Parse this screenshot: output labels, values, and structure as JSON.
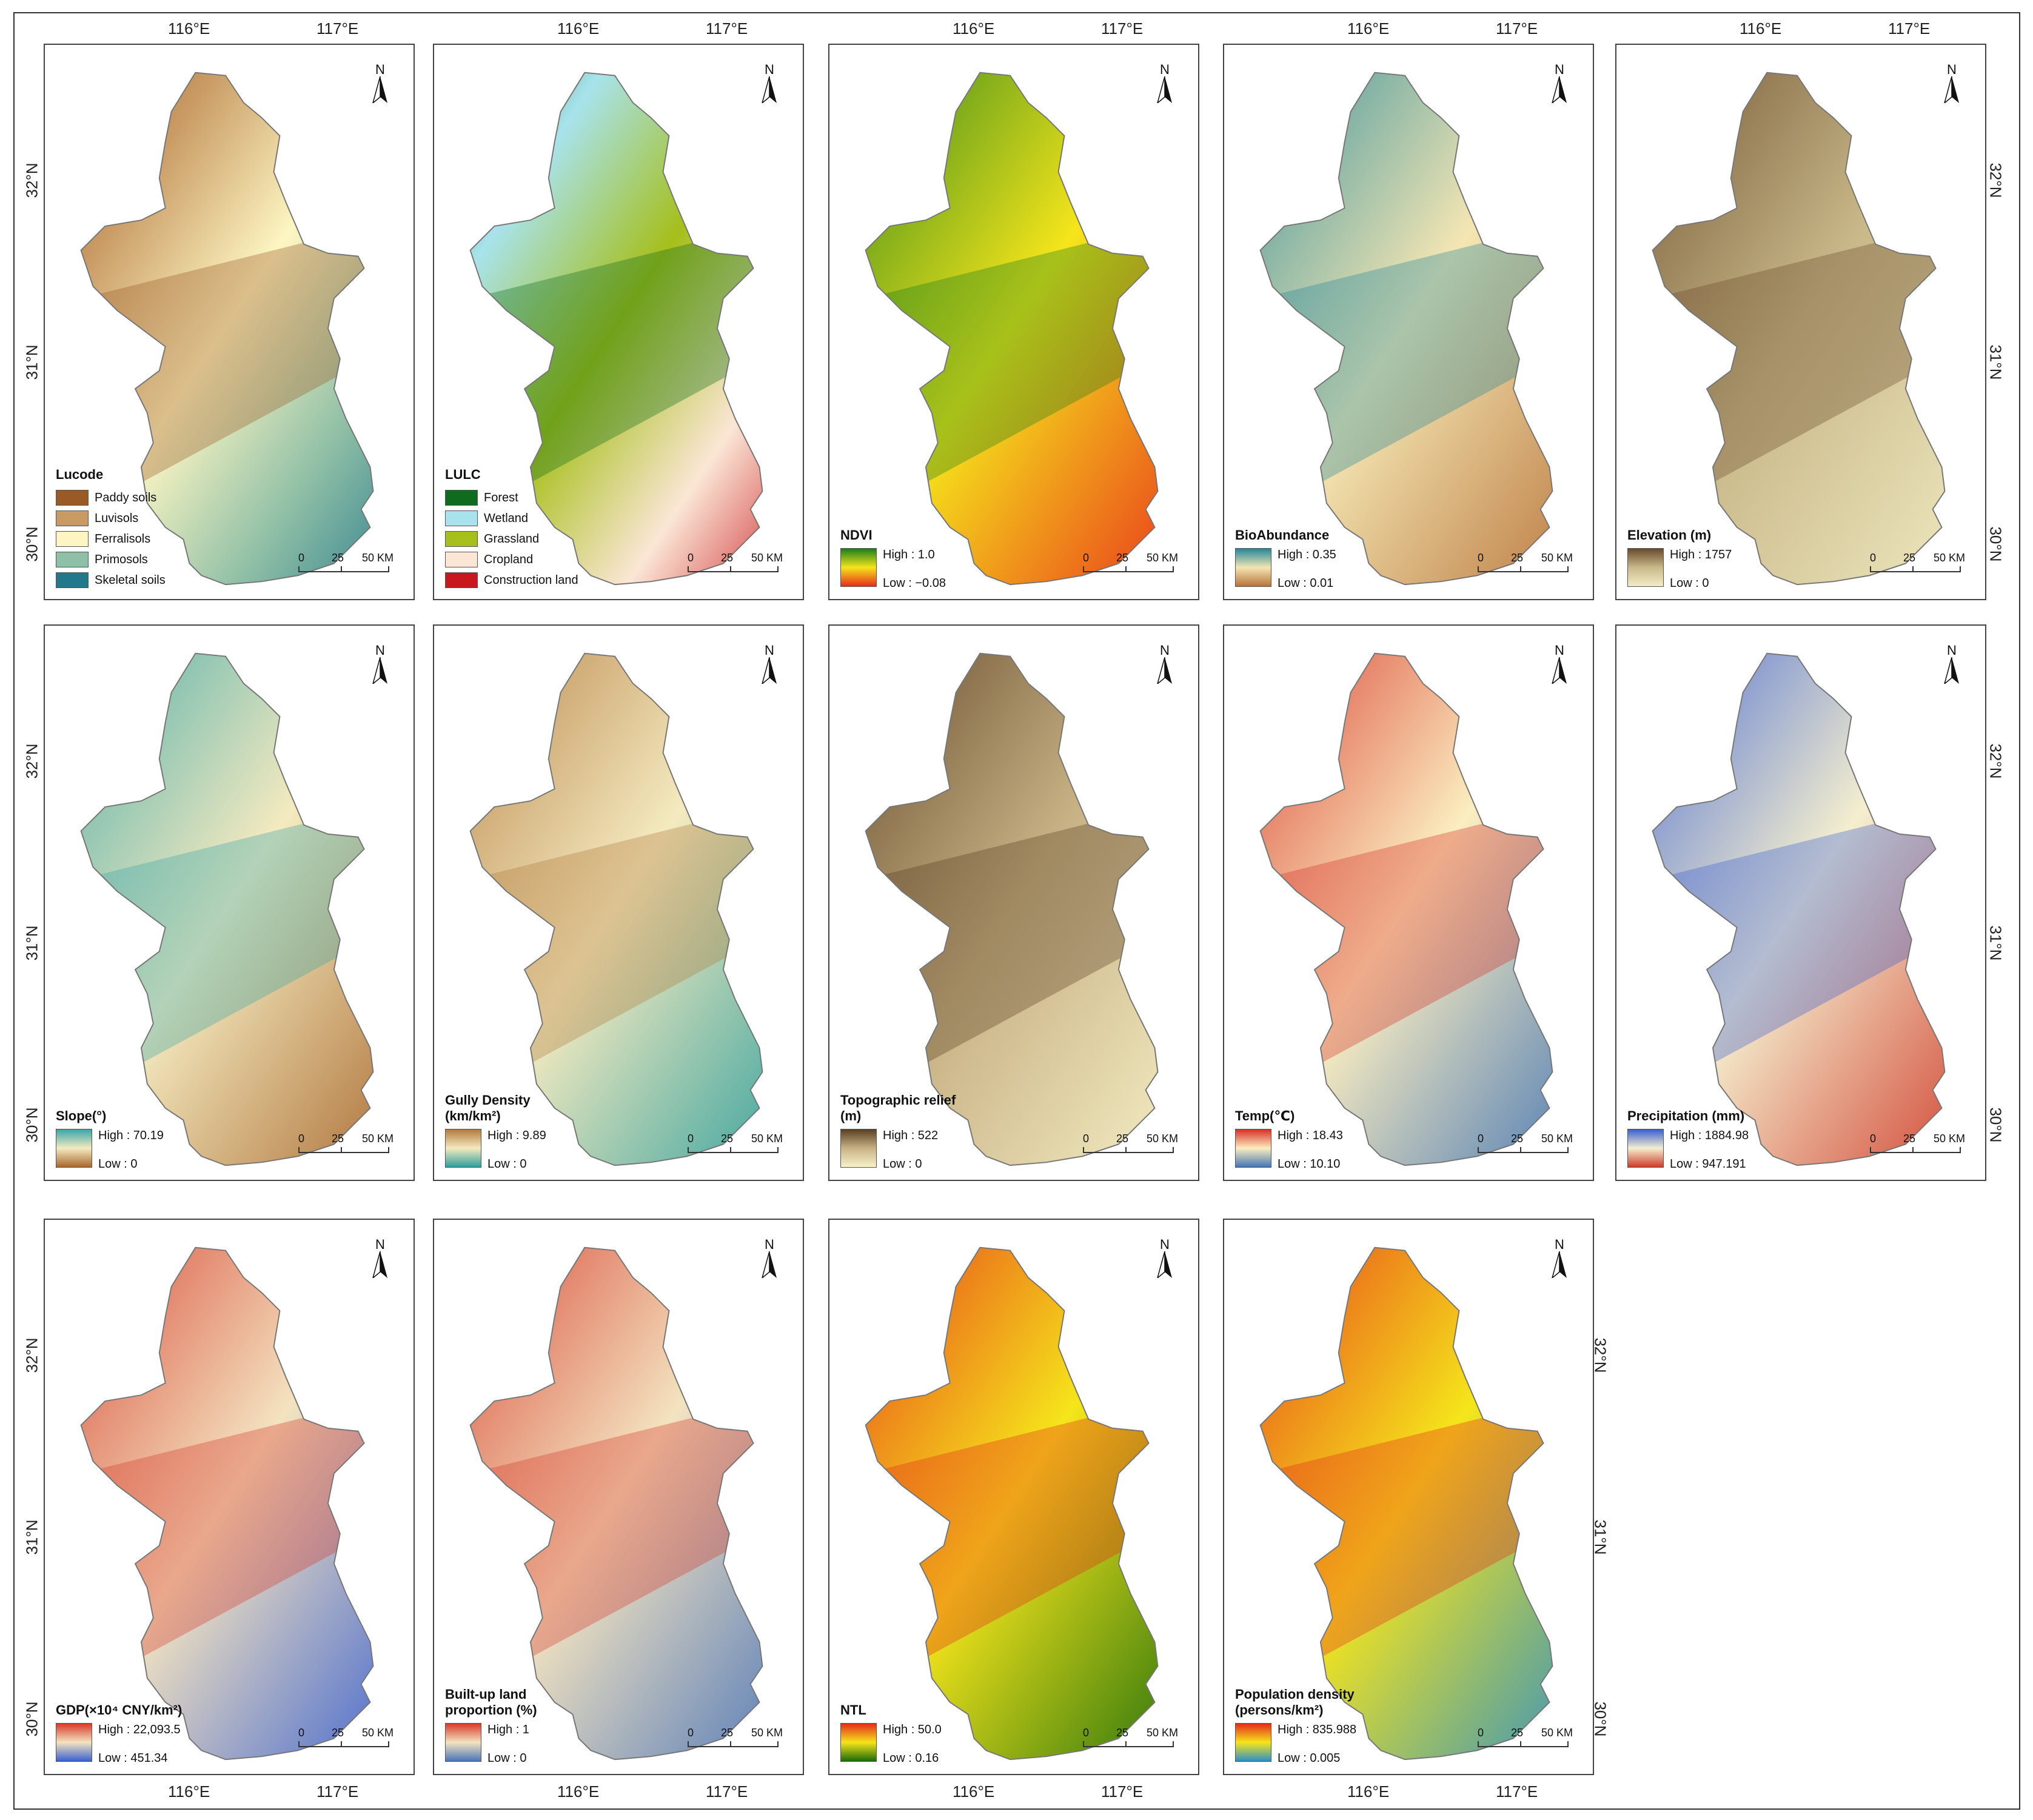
{
  "axes": {
    "lon_labels": [
      "116°E",
      "117°E"
    ],
    "lat_labels": [
      "32°N",
      "31°N",
      "30°N"
    ]
  },
  "scalebar": {
    "labels": [
      "0",
      "25",
      "50 KM"
    ]
  },
  "north": "N",
  "panels": [
    {
      "id": "lucode",
      "title": "Lucode",
      "type": "categorical",
      "items": [
        {
          "label": "Paddy soils",
          "color": "#9a5a26"
        },
        {
          "label": "Luvisols",
          "color": "#c99a63"
        },
        {
          "label": "Ferralisols",
          "color": "#fdf6c3"
        },
        {
          "label": "Primosols",
          "color": "#8fbfa6"
        },
        {
          "label": "Skeletal soils",
          "color": "#24788c"
        }
      ]
    },
    {
      "id": "lulc",
      "title": "LULC",
      "type": "categorical",
      "items": [
        {
          "label": "Forest",
          "color": "#0f6b1e"
        },
        {
          "label": "Wetland",
          "color": "#a8e3ec"
        },
        {
          "label": "Grassland",
          "color": "#a6bf1a"
        },
        {
          "label": "Cropland",
          "color": "#fbe6d6"
        },
        {
          "label": "Construction land",
          "color": "#c8171d"
        }
      ]
    },
    {
      "id": "ndvi",
      "title": "NDVI",
      "type": "gradient",
      "high": "High : 1.0",
      "low": "Low : −0.08",
      "colors": [
        "#1b7d1b",
        "#f5e51b",
        "#e82b1b"
      ]
    },
    {
      "id": "bio",
      "title": "BioAbundance",
      "type": "gradient",
      "high": "High : 0.35",
      "low": "Low : 0.01",
      "colors": [
        "#23879a",
        "#f4e6b3",
        "#b8733a"
      ]
    },
    {
      "id": "elev",
      "title": "Elevation (m)",
      "type": "gradient",
      "high": "High : 1757",
      "low": "Low : 0",
      "colors": [
        "#6a4a2b",
        "#c9b98a",
        "#f2ecc4"
      ]
    },
    {
      "id": "slope",
      "title": "Slope(°)",
      "type": "gradient",
      "high": "High : 70.19",
      "low": "Low : 0",
      "colors": [
        "#3aa6a8",
        "#f4eac0",
        "#a8682d"
      ]
    },
    {
      "id": "gully",
      "title": "Gully Density\n(km/km²)",
      "type": "gradient",
      "high": "High : 9.89",
      "low": "Low : 0",
      "colors": [
        "#b37a3d",
        "#f4eac0",
        "#2d9e9c"
      ]
    },
    {
      "id": "relief",
      "title": "Topographic relief\n(m)",
      "type": "gradient",
      "high": "High : 522",
      "low": "Low : 0",
      "colors": [
        "#5a3f22",
        "#c8b285",
        "#f8f2c9"
      ]
    },
    {
      "id": "temp",
      "title": "Temp(℃)",
      "type": "gradient",
      "high": "High : 18.43",
      "low": "Low : 10.10",
      "colors": [
        "#d73027",
        "#fbeec0",
        "#4575b4"
      ]
    },
    {
      "id": "precip",
      "title": "Precipitation (mm)",
      "type": "gradient",
      "high": "High : 1884.98",
      "low": "Low : 947.191",
      "colors": [
        "#3a5fd0",
        "#f5efcf",
        "#cf3a2a"
      ]
    },
    {
      "id": "gdp",
      "title": "GDP(×10⁴ CNY/km²)",
      "type": "gradient",
      "high": "High : 22,093.5",
      "low": "Low : 451.34",
      "colors": [
        "#d73a2a",
        "#f3e3c0",
        "#3a60d0"
      ]
    },
    {
      "id": "builtup",
      "title": "Built-up land\nproportion (%)",
      "type": "gradient",
      "high": "High : 1",
      "low": "Low : 0",
      "colors": [
        "#d73a2a",
        "#f3e3c0",
        "#4a74b8"
      ]
    },
    {
      "id": "ntl",
      "title": "NTL",
      "type": "gradient",
      "high": "High : 50.0",
      "low": "Low : 0.16",
      "colors": [
        "#e52b1b",
        "#f5e51b",
        "#1b6b0b"
      ]
    },
    {
      "id": "pop",
      "title": "Population density\n(persons/km²)",
      "type": "gradient",
      "high": "High : 835.988",
      "low": "Low : 0.005",
      "colors": [
        "#e52b1b",
        "#f5e51b",
        "#2c8ec8"
      ]
    }
  ]
}
